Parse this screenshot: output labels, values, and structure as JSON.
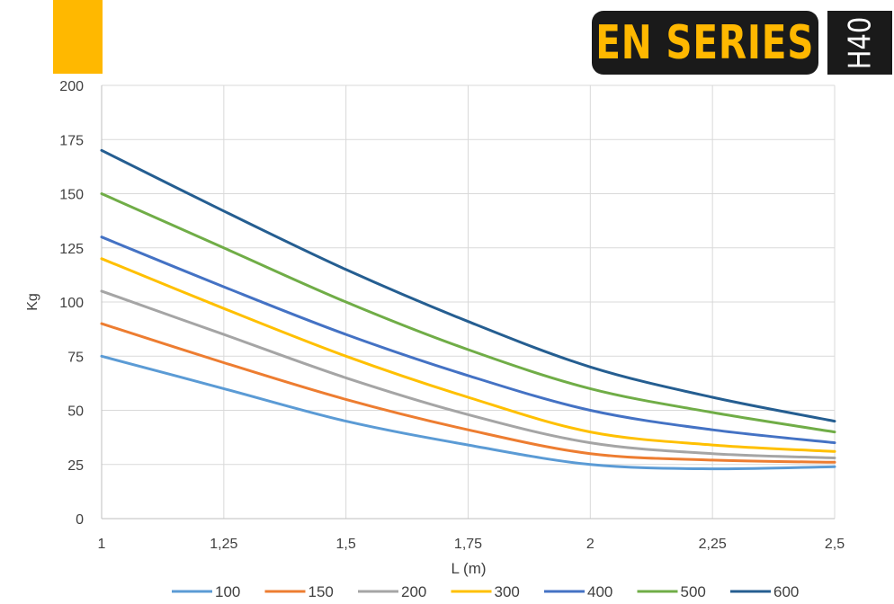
{
  "brand": {
    "series_label": "EN SERIES",
    "model_label": "H40",
    "accent_color": "#ffb800"
  },
  "chart_data": {
    "type": "line",
    "xlabel": "L (m)",
    "ylabel": "Kg",
    "xlim": [
      1,
      2.5
    ],
    "ylim": [
      0,
      200
    ],
    "x_ticks": [
      "1",
      "1,25",
      "1,5",
      "1,75",
      "2",
      "2,25",
      "2,5"
    ],
    "y_ticks": [
      "0",
      "25",
      "50",
      "75",
      "100",
      "125",
      "150",
      "175",
      "200"
    ],
    "grid": true,
    "legend_position": "bottom",
    "x": [
      1,
      1.25,
      1.5,
      1.75,
      2,
      2.25,
      2.5
    ],
    "series": [
      {
        "name": "100",
        "color": "#5b9bd5",
        "values": [
          75,
          60,
          45,
          34,
          25,
          23,
          24
        ]
      },
      {
        "name": "150",
        "color": "#ed7d31",
        "values": [
          90,
          72,
          55,
          41,
          30,
          27,
          26
        ]
      },
      {
        "name": "200",
        "color": "#a5a5a5",
        "values": [
          105,
          85,
          65,
          48,
          35,
          30,
          28
        ]
      },
      {
        "name": "300",
        "color": "#ffc000",
        "values": [
          120,
          97,
          75,
          56,
          40,
          34,
          31
        ]
      },
      {
        "name": "400",
        "color": "#4472c4",
        "values": [
          130,
          107,
          85,
          66,
          50,
          41,
          35
        ]
      },
      {
        "name": "500",
        "color": "#70ad47",
        "values": [
          150,
          125,
          100,
          78,
          60,
          49,
          40
        ]
      },
      {
        "name": "600",
        "color": "#255e91",
        "values": [
          170,
          142,
          115,
          91,
          70,
          56,
          45
        ]
      }
    ]
  }
}
